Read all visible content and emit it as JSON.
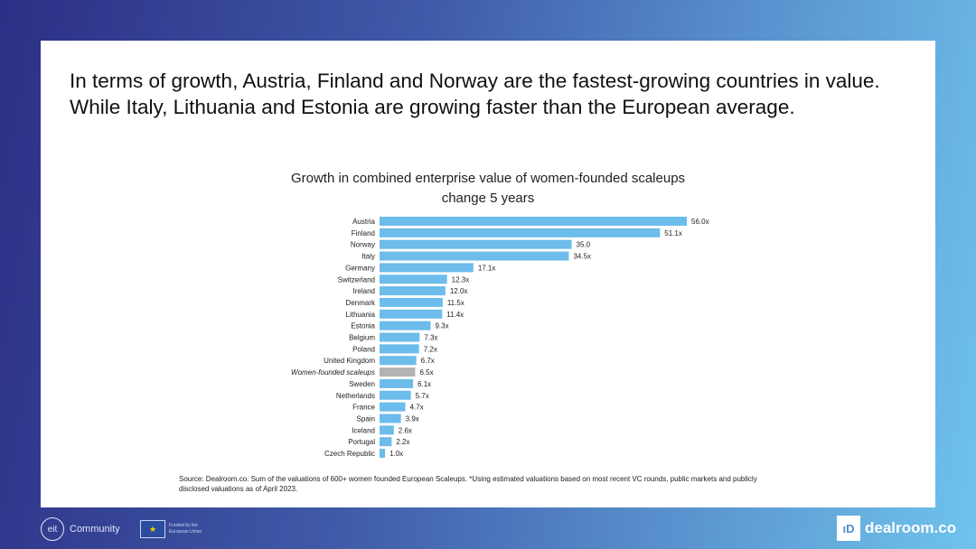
{
  "headline": "In terms of growth, Austria, Finland and Norway are the fastest-growing countries in value. While Italy, Lithuania and Estonia are growing faster than the European average.",
  "source": "Source: Dealroom.co. Sum of the valuations of 600+ women founded European Scaleups. *Using estimated valuations based on most recent VC rounds, public markets and publicly disclosed valuations as of April 2023.",
  "footer": {
    "eit_label": "Community",
    "eit_mark": "eit",
    "eu_text": "Funded by the European Union",
    "eu_flag": "★",
    "dealroom_label": "dealroom.co",
    "dealroom_mark": "ıD"
  },
  "colors": {
    "bar": "#6cbcec",
    "highlight": "#b3b3b3"
  },
  "chart_data": {
    "type": "bar",
    "orientation": "horizontal",
    "title": "Growth in combined enterprise value of women-founded scaleups",
    "subtitle": "change 5 years",
    "categories": [
      "Austria",
      "Finland",
      "Norway",
      "Italy",
      "Germany",
      "Switzerland",
      "Ireland",
      "Denmark",
      "Lithuania",
      "Estonia",
      "Belgium",
      "Poland",
      "United Kingdom",
      "Women-founded scaleups",
      "Sweden",
      "Netherlands",
      "France",
      "Spain",
      "Iceland",
      "Portugal",
      "Czech Republic"
    ],
    "values": [
      56.0,
      51.1,
      35.0,
      34.5,
      17.1,
      12.3,
      12.0,
      11.5,
      11.4,
      9.3,
      7.3,
      7.2,
      6.7,
      6.5,
      6.1,
      5.7,
      4.7,
      3.9,
      2.6,
      2.2,
      1.0
    ],
    "labels": [
      "56.0x",
      "51.1x",
      "35.0",
      "34.5x",
      "17.1x",
      "12.3x",
      "12.0x",
      "11.5x",
      "11.4x",
      "9.3x",
      "7.3x",
      "7.2x",
      "6.7x",
      "6.5x",
      "6.1x",
      "5.7x",
      "4.7x",
      "3.9x",
      "2.6x",
      "2.2x",
      "1.0x"
    ],
    "highlight": "Women-founded scaleups",
    "xlim": [
      0,
      56
    ],
    "grid": false,
    "legend": "none"
  }
}
